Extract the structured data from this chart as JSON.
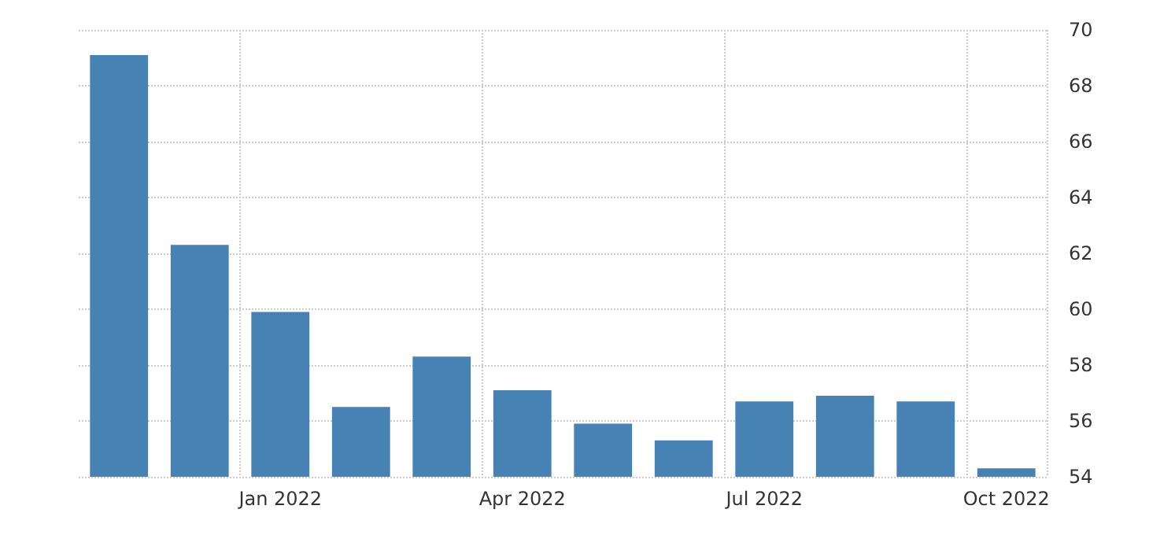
{
  "chart_data": {
    "type": "bar",
    "categories": [
      null,
      null,
      "Jan 2022",
      null,
      null,
      "Apr 2022",
      null,
      null,
      "Jul 2022",
      null,
      null,
      "Oct 2022"
    ],
    "values": [
      69.1,
      62.3,
      59.9,
      56.5,
      58.3,
      57.1,
      55.9,
      55.3,
      56.7,
      56.9,
      56.7,
      54.3
    ],
    "color": "#4682b4",
    "ylim": [
      54,
      70
    ],
    "yticks": [
      54,
      56,
      58,
      60,
      62,
      64,
      66,
      68,
      70
    ],
    "grid": true
  }
}
